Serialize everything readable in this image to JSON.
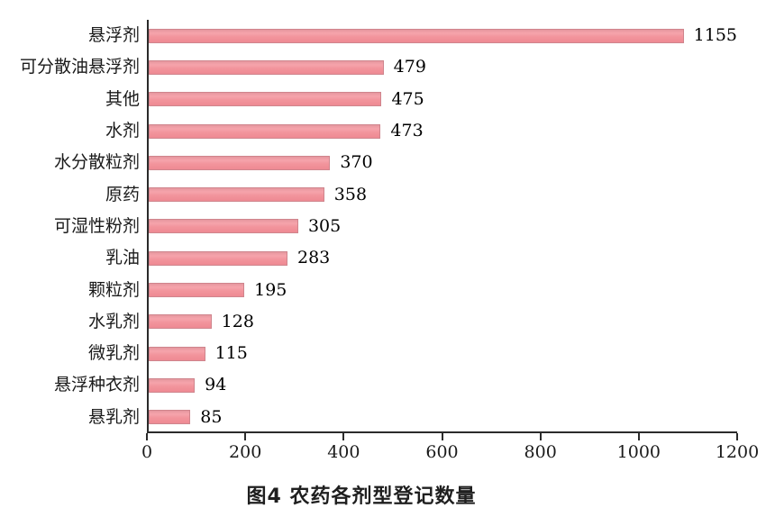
{
  "figure": {
    "title": "图4 农药各剂型登记数量"
  },
  "chart_data": {
    "type": "bar",
    "orientation": "horizontal",
    "title": "图4 农药各剂型登记数量",
    "xlabel": "",
    "ylabel": "",
    "categories": [
      "悬浮剂",
      "可分散油悬浮剂",
      "其他",
      "水剂",
      "水分散粒剂",
      "原药",
      "可湿性粉剂",
      "乳油",
      "颗粒剂",
      "水乳剂",
      "微乳剂",
      "悬浮种衣剂",
      "悬乳剂"
    ],
    "values": [
      1155,
      479,
      475,
      473,
      370,
      358,
      305,
      283,
      195,
      128,
      115,
      94,
      85
    ],
    "value_labels_shown": true,
    "xlim": [
      0,
      1200
    ],
    "xticks": [
      0,
      200,
      400,
      600,
      800,
      1000,
      1200
    ],
    "grid": false,
    "legend": null,
    "bar_fill_color": "#f2949c",
    "bar_border_color": "#cf858d",
    "axis_color": "#2b2b2b",
    "text_color": "#1a1a1a"
  }
}
